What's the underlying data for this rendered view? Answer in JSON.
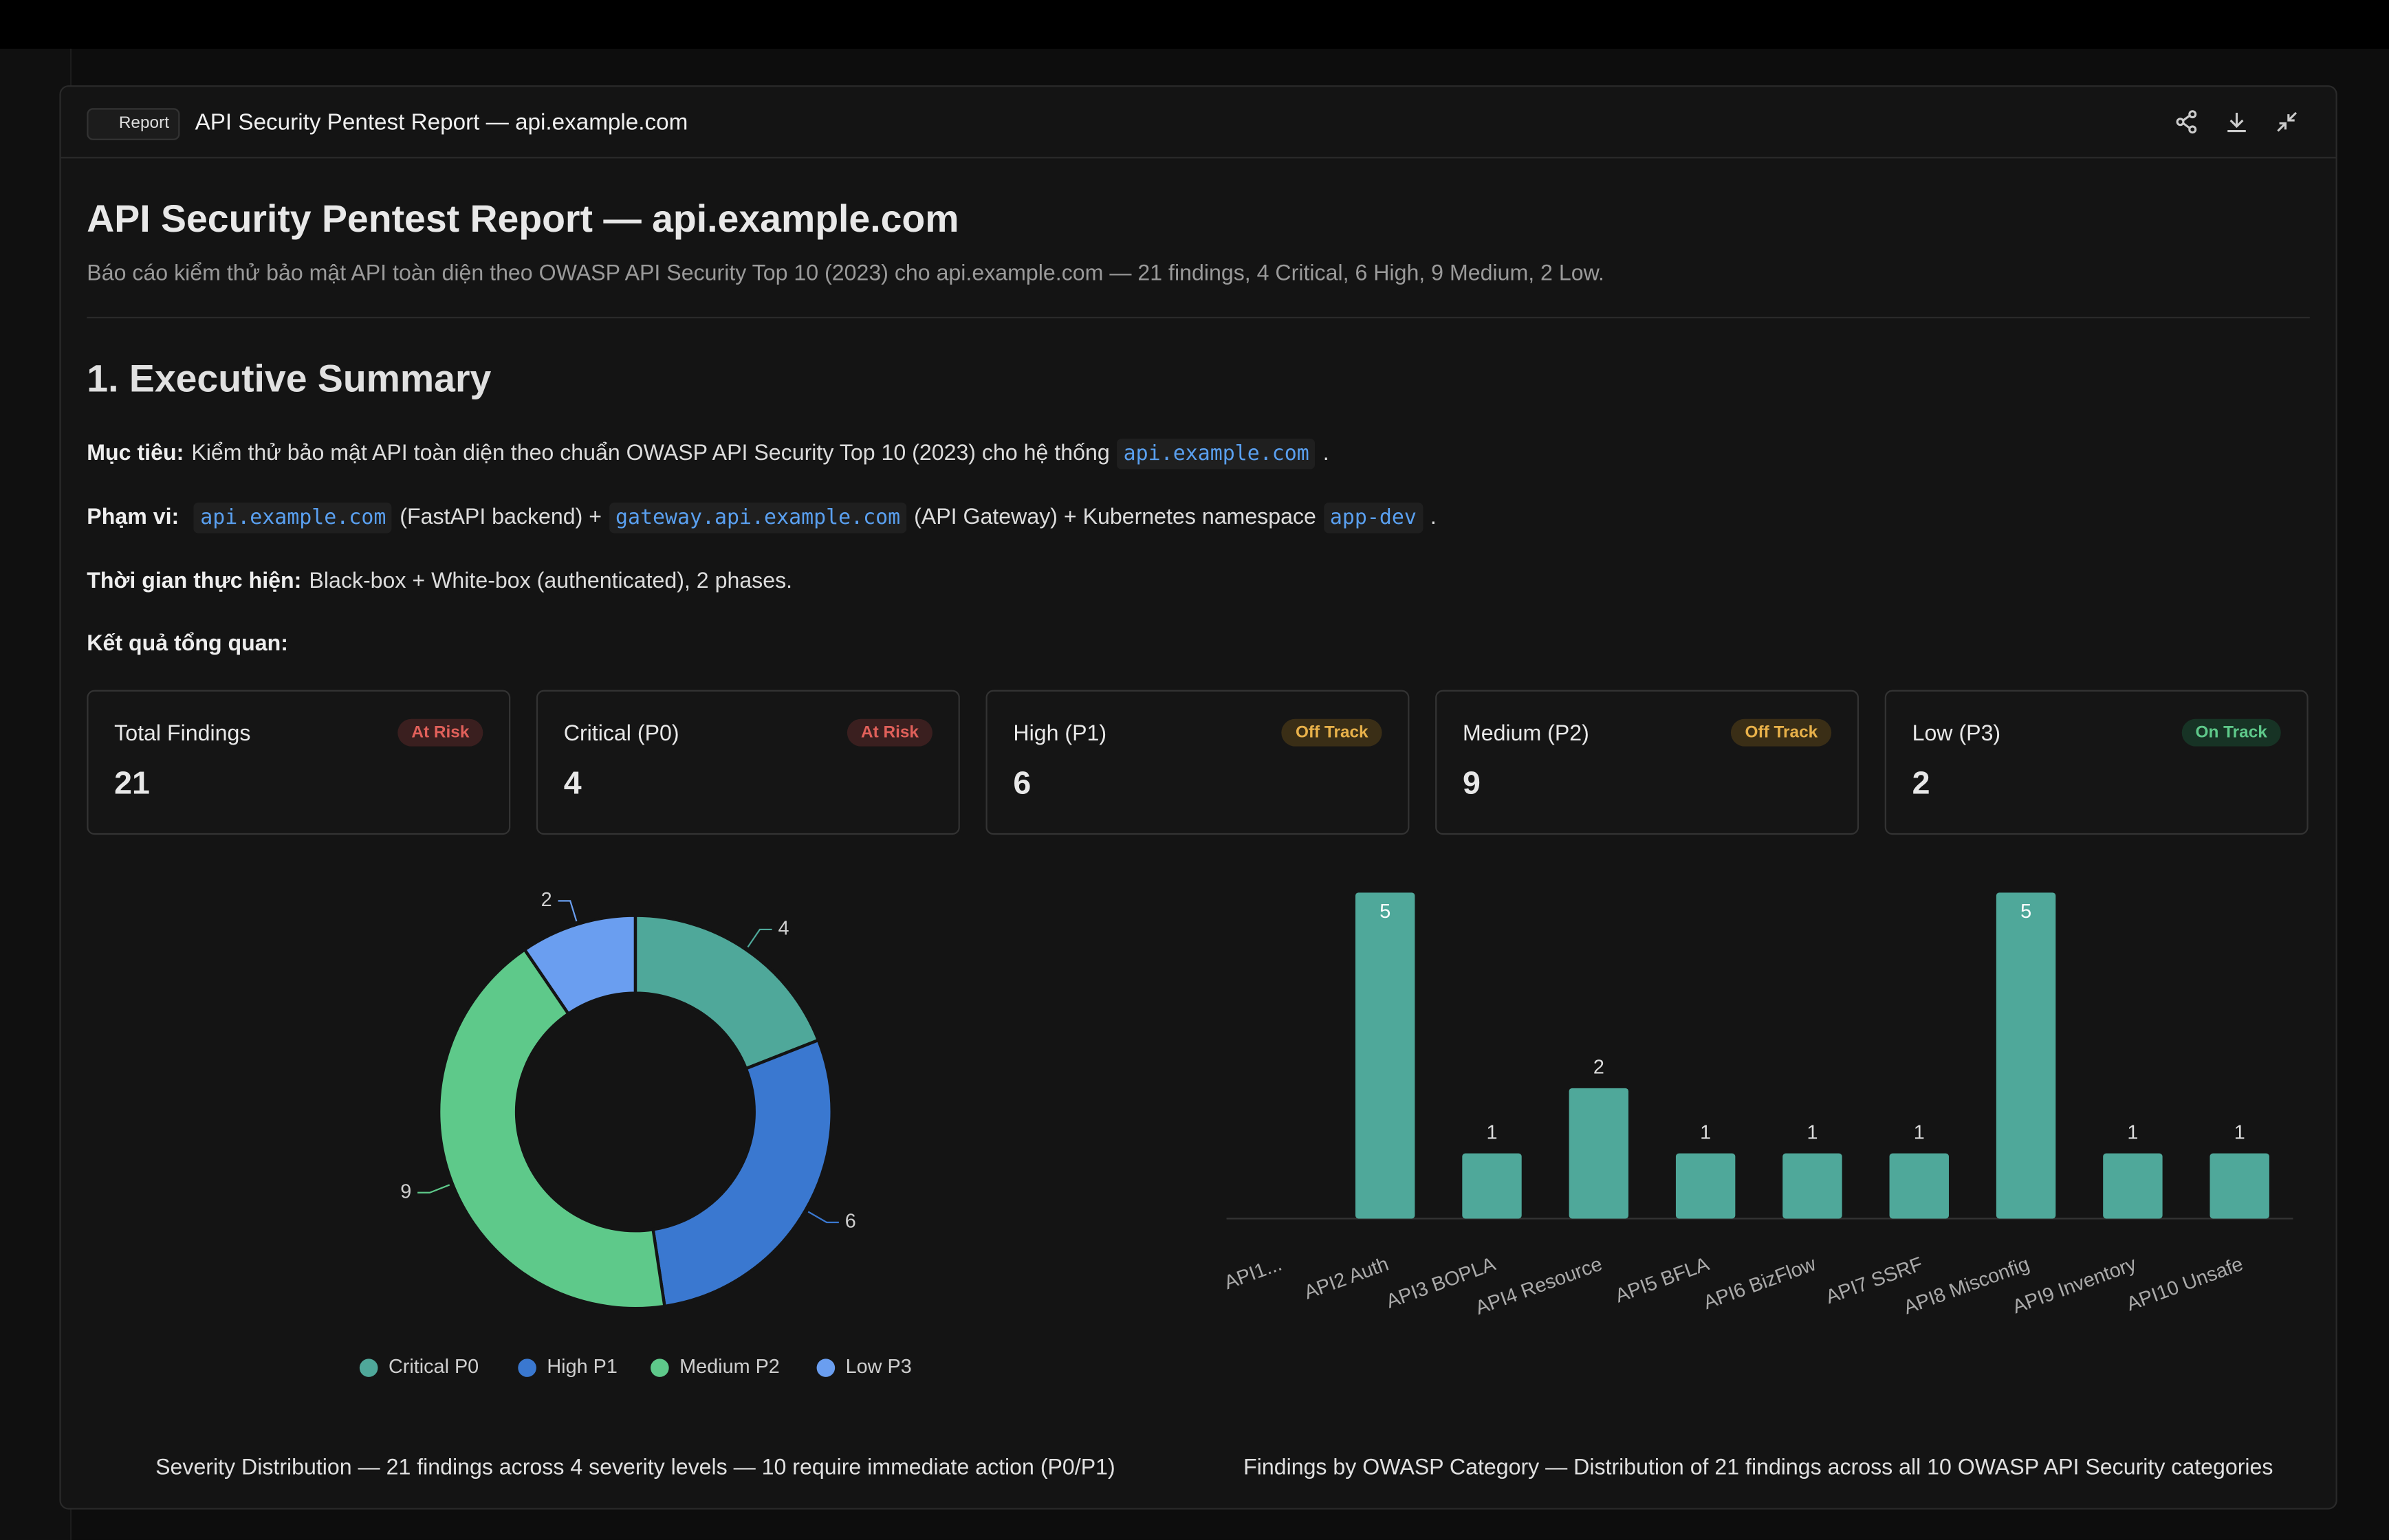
{
  "modal": {
    "badge": "Report",
    "title": "API Security Pentest Report — api.example.com"
  },
  "report": {
    "title": "API Security Pentest Report — api.example.com",
    "subtitle": "Báo cáo kiểm thử bảo mật API toàn diện theo OWASP API Security Top 10 (2023) cho api.example.com — 21 findings, 4 Critical, 6 High, 9 Medium, 2 Low.",
    "section": "1. Executive Summary",
    "paragraphs": [
      {
        "label": "Mục tiêu:",
        "segments": [
          {
            "text": "Kiểm thử bảo mật API toàn diện theo chuẩn OWASP API Security Top 10 (2023) cho hệ thống"
          },
          {
            "code": "api.example.com"
          },
          {
            "text": "."
          }
        ]
      },
      {
        "label": "Phạm vi:",
        "segments": [
          {
            "code": "api.example.com"
          },
          {
            "text": "(FastAPI backend) +"
          },
          {
            "code": "gateway.api.example.com"
          },
          {
            "text": "(API Gateway) + Kubernetes namespace"
          },
          {
            "code": "app-dev"
          },
          {
            "text": "."
          }
        ]
      },
      {
        "label": "Thời gian thực hiện:",
        "segments": [
          {
            "text": "Black-box + White-box (authenticated), 2 phases."
          }
        ]
      },
      {
        "label": "Kết quả tổng quan:",
        "segments": []
      }
    ],
    "cards": [
      {
        "title": "Total Findings",
        "status": "At Risk",
        "value": 21,
        "color": "#e0605a",
        "bg": "#3a1f1f"
      },
      {
        "title": "Critical (P0)",
        "status": "At Risk",
        "value": 4,
        "color": "#e0605a",
        "bg": "#3a1f1f"
      },
      {
        "title": "High (P1)",
        "status": "Off Track",
        "value": 6,
        "color": "#e8b14a",
        "bg": "#3a2e16"
      },
      {
        "title": "Medium (P2)",
        "status": "Off Track",
        "value": 9,
        "color": "#e8b14a",
        "bg": "#3a2e16"
      },
      {
        "title": "Low (P3)",
        "status": "On Track",
        "value": 2,
        "color": "#5ec98a",
        "bg": "#173325"
      }
    ]
  },
  "charts": [
    {
      "type": "pie",
      "donut": true,
      "categories": [
        "Critical P0",
        "High P1",
        "Medium P2",
        "Low P3"
      ],
      "values": [
        4,
        6,
        9,
        2
      ],
      "colors": [
        "#4fa89a",
        "#3a78d0",
        "#5ec98a",
        "#6a9ef0"
      ],
      "caption": "Severity Distribution — 21 findings across 4 severity levels — 10 require immediate action (P0/P1)"
    },
    {
      "type": "bar",
      "categories": [
        "API1...",
        "API2 Auth",
        "API3 BOPLA",
        "API4 Resource",
        "API5 BFLA",
        "API6 BizFlow",
        "API7 SSRF",
        "API8 Misconfig",
        "API9 Inventory",
        "API10 Unsafe"
      ],
      "values": [
        null,
        5,
        1,
        2,
        1,
        1,
        1,
        5,
        1,
        1
      ],
      "color": "#4fa89a",
      "caption": "Findings by OWASP Category — Distribution of 21 findings across all 10 OWASP API Security categories"
    }
  ]
}
